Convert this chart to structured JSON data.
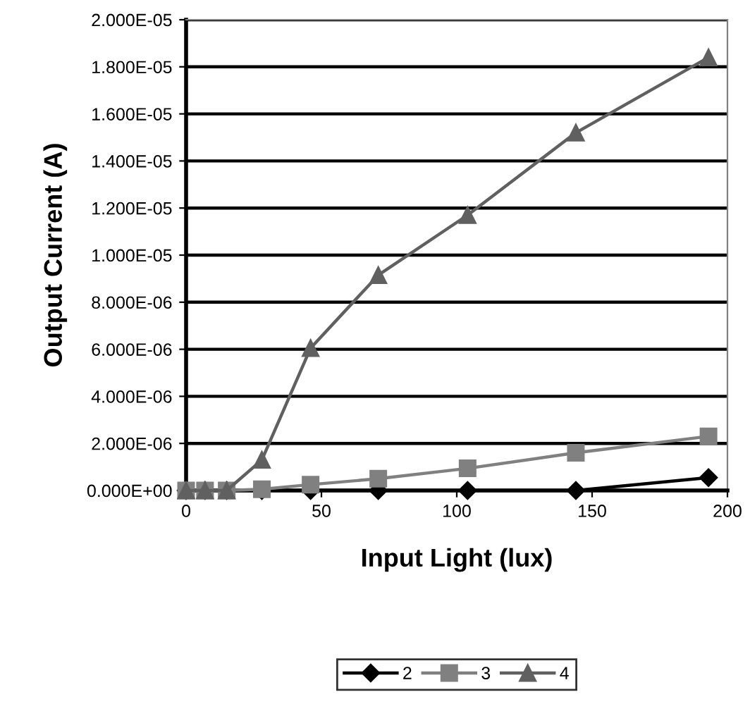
{
  "chart_data": {
    "type": "line",
    "xlabel": "Input Light (lux)",
    "ylabel": "Output Current (A)",
    "x": [
      0,
      7,
      15,
      28,
      46,
      71,
      104,
      144,
      193
    ],
    "series": [
      {
        "name": "2",
        "color": "#000000",
        "marker": "diamond",
        "values": [
          0,
          0,
          0,
          0,
          0,
          0,
          0,
          0,
          5.5e-07
        ]
      },
      {
        "name": "3",
        "color": "#808080",
        "marker": "square",
        "values": [
          0,
          0,
          0,
          5e-08,
          2.5e-07,
          5e-07,
          9.4e-07,
          1.6e-06,
          2.3e-06
        ]
      },
      {
        "name": "4",
        "color": "#606060",
        "marker": "triangle",
        "values": [
          0,
          0,
          0,
          1.3e-06,
          6.05e-06,
          9.15e-06,
          1.17e-05,
          1.52e-05,
          1.84e-05
        ]
      }
    ],
    "xlim": [
      0,
      200
    ],
    "xticks": [
      0,
      50,
      100,
      150,
      200
    ],
    "ylim": [
      0,
      2e-05
    ],
    "yticks": [
      {
        "value": 0,
        "label": "0.000E+00"
      },
      {
        "value": 2e-06,
        "label": "2.000E-06"
      },
      {
        "value": 4e-06,
        "label": "4.000E-06"
      },
      {
        "value": 6e-06,
        "label": "6.000E-06"
      },
      {
        "value": 8e-06,
        "label": "8.000E-06"
      },
      {
        "value": 1e-05,
        "label": "1.000E-05"
      },
      {
        "value": 1.2e-05,
        "label": "1.200E-05"
      },
      {
        "value": 1.4e-05,
        "label": "1.400E-05"
      },
      {
        "value": 1.6e-05,
        "label": "1.600E-05"
      },
      {
        "value": 1.8e-05,
        "label": "1.800E-05"
      },
      {
        "value": 2e-05,
        "label": "2.000E-05"
      }
    ],
    "grid": "y",
    "legend": "bottom",
    "line_style": "solid"
  }
}
